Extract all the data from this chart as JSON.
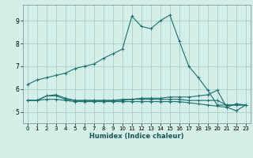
{
  "xlabel": "Humidex (Indice chaleur)",
  "xlim": [
    -0.5,
    23.5
  ],
  "ylim": [
    4.5,
    9.7
  ],
  "yticks": [
    5,
    6,
    7,
    8,
    9
  ],
  "xticks": [
    0,
    1,
    2,
    3,
    4,
    5,
    6,
    7,
    8,
    9,
    10,
    11,
    12,
    13,
    14,
    15,
    16,
    17,
    18,
    19,
    20,
    21,
    22,
    23
  ],
  "bg_color": "#d4eee8",
  "grid_color": "#aad0c8",
  "line_color": "#1a7070",
  "series": [
    [
      6.2,
      6.4,
      6.5,
      6.6,
      6.7,
      6.9,
      7.0,
      7.1,
      7.35,
      7.55,
      7.75,
      9.2,
      8.75,
      8.65,
      9.0,
      9.25,
      8.1,
      7.0,
      6.5,
      5.95,
      5.3,
      5.3,
      5.3,
      5.3
    ],
    [
      5.5,
      5.5,
      5.7,
      5.7,
      5.55,
      5.5,
      5.5,
      5.5,
      5.5,
      5.5,
      5.55,
      5.55,
      5.6,
      5.6,
      5.6,
      5.65,
      5.65,
      5.65,
      5.7,
      5.75,
      5.95,
      5.2,
      5.35,
      5.3
    ],
    [
      5.5,
      5.5,
      5.55,
      5.55,
      5.5,
      5.45,
      5.45,
      5.45,
      5.45,
      5.45,
      5.45,
      5.45,
      5.45,
      5.45,
      5.45,
      5.45,
      5.45,
      5.4,
      5.35,
      5.3,
      5.25,
      5.2,
      5.05,
      5.3
    ],
    [
      5.5,
      5.5,
      5.7,
      5.75,
      5.6,
      5.5,
      5.5,
      5.5,
      5.5,
      5.5,
      5.5,
      5.55,
      5.55,
      5.55,
      5.55,
      5.55,
      5.55,
      5.5,
      5.5,
      5.5,
      5.5,
      5.3,
      5.3,
      5.3
    ]
  ]
}
